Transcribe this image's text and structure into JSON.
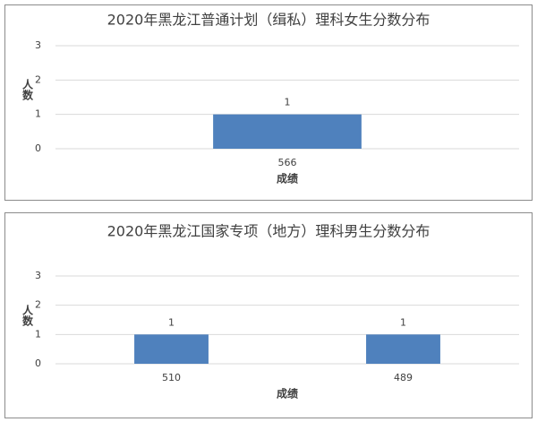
{
  "chart_data": [
    {
      "type": "bar",
      "title": "2020年黑龙江普通计划（缉私）理科女生分数分布",
      "x_label": "成绩",
      "y_label": "人数",
      "categories": [
        "566"
      ],
      "values": [
        1
      ],
      "color": "#4f81bd",
      "ylim": [
        0,
        3
      ],
      "yticks": [
        0,
        1,
        2,
        3
      ],
      "grid": true
    },
    {
      "type": "bar",
      "title": "2020年黑龙江国家专项（地方）理科男生分数分布",
      "x_label": "成绩",
      "y_label": "人数",
      "categories": [
        "510",
        "489"
      ],
      "values": [
        1,
        1
      ],
      "color": "#4f81bd",
      "ylim": [
        0,
        3
      ],
      "yticks": [
        0,
        1,
        2,
        3
      ],
      "grid": true
    }
  ]
}
